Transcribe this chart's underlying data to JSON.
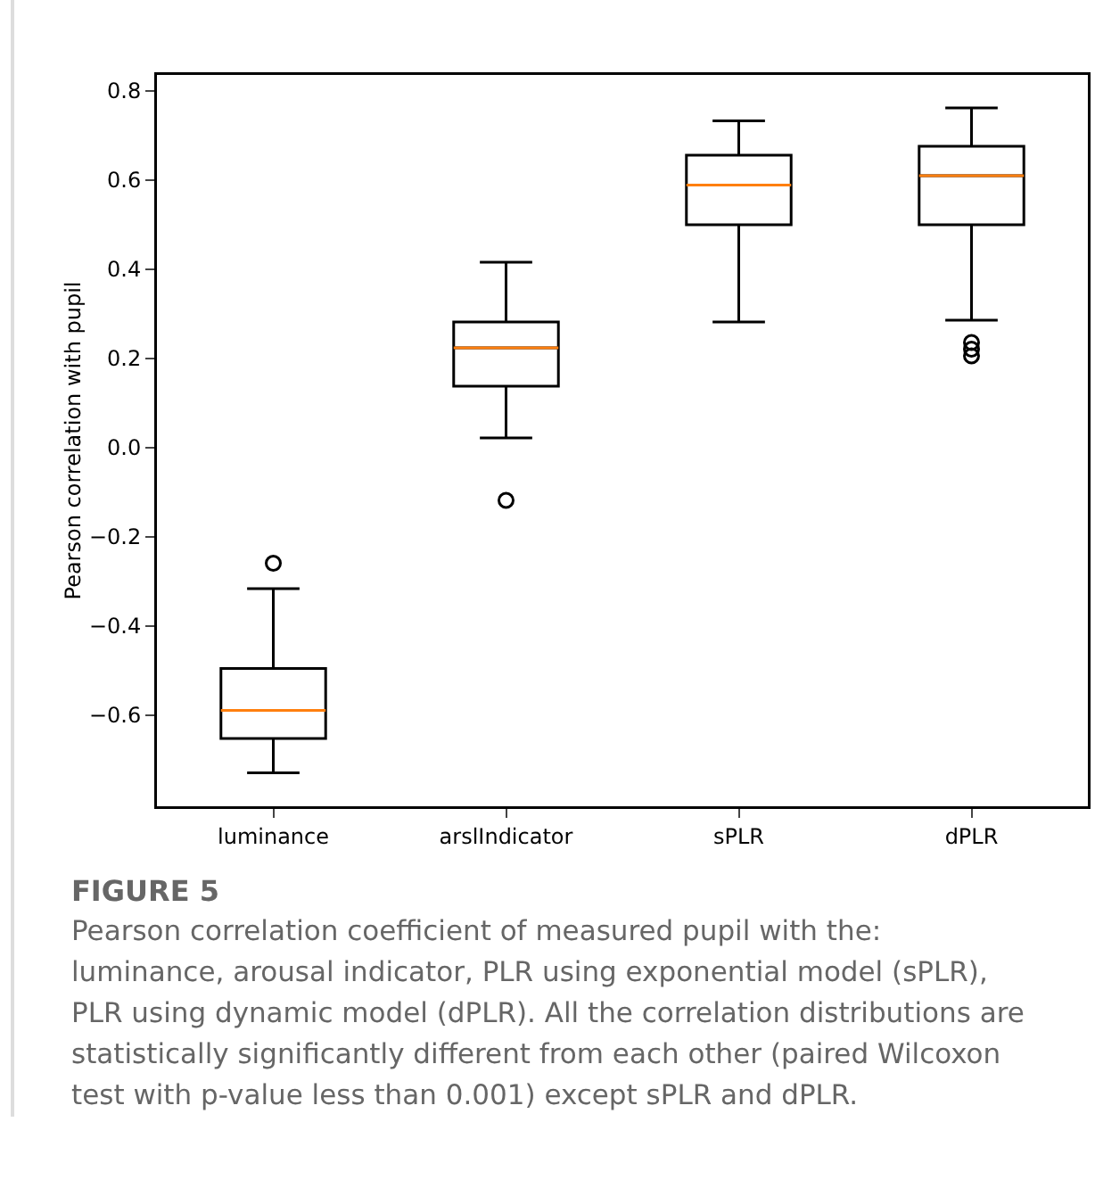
{
  "chart_data": {
    "type": "box",
    "ylabel": "Pearson correlation with pupil",
    "categories": [
      "luminance",
      "arslIndicator",
      "sPLR",
      "dPLR"
    ],
    "boxes": [
      {
        "low": -0.73,
        "q1": -0.653,
        "median": -0.59,
        "q3": -0.496,
        "high": -0.317,
        "outliers": [
          -0.26
        ]
      },
      {
        "low": 0.021,
        "q1": 0.137,
        "median": 0.223,
        "q3": 0.281,
        "high": 0.415,
        "outliers": [
          -0.119
        ]
      },
      {
        "low": 0.281,
        "q1": 0.499,
        "median": 0.588,
        "q3": 0.655,
        "high": 0.732
      },
      {
        "low": 0.285,
        "q1": 0.499,
        "median": 0.609,
        "q3": 0.675,
        "high": 0.761,
        "outliers": [
          0.235,
          0.22,
          0.205
        ]
      }
    ],
    "color": "#000000",
    "ylim": [
      -0.805,
      0.835
    ],
    "yticks": [
      {
        "value": -0.6,
        "label": "−0.6"
      },
      {
        "value": -0.4,
        "label": "−0.4"
      },
      {
        "value": -0.2,
        "label": "−0.2"
      },
      {
        "value": 0,
        "label": "0.0"
      },
      {
        "value": 0.2,
        "label": "0.2"
      },
      {
        "value": 0.4,
        "label": "0.4"
      },
      {
        "value": 0.6,
        "label": "0.6"
      },
      {
        "value": 0.8,
        "label": "0.8"
      }
    ],
    "grid": false,
    "annotations": [
      "FIGURE 5",
      "Pearson correlation coefficient of measured pupil with the: luminance, arousal indicator, PLR using exponential model (sPLR), PLR using dynamic model (dPLR). All the correlation distributions are statistically significantly different from each other (paired Wilcoxon test with p-value less than 0.001) except sPLR and dPLR."
    ]
  }
}
